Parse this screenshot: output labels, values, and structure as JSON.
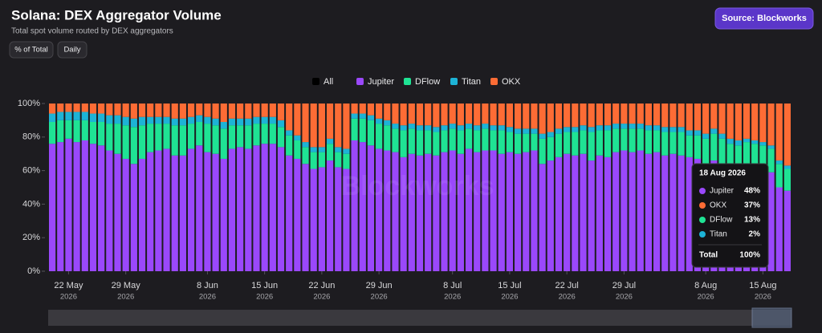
{
  "chart_data": {
    "type": "stacked_bar_percent",
    "title": "Solana: DEX Aggregator Volume",
    "subtitle": "Total spot volume routed by DEX aggregators",
    "buttons": [
      "% of Total",
      "Daily"
    ],
    "source": "Source: Blockworks",
    "watermark": "Blockworks",
    "legend_all": "All",
    "categories": [
      "20 May 2026",
      "21 May 2026",
      "22 May 2026",
      "23 May 2026",
      "24 May 2026",
      "25 May 2026",
      "26 May 2026",
      "27 May 2026",
      "28 May 2026",
      "29 May 2026",
      "30 May 2026",
      "31 May 2026",
      "1 Jun 2026",
      "2 Jun 2026",
      "3 Jun 2026",
      "4 Jun 2026",
      "5 Jun 2026",
      "6 Jun 2026",
      "7 Jun 2026",
      "8 Jun 2026",
      "9 Jun 2026",
      "10 Jun 2026",
      "11 Jun 2026",
      "12 Jun 2026",
      "13 Jun 2026",
      "14 Jun 2026",
      "15 Jun 2026",
      "16 Jun 2026",
      "17 Jun 2026",
      "18 Jun 2026",
      "19 Jun 2026",
      "20 Jun 2026",
      "21 Jun 2026",
      "22 Jun 2026",
      "23 Jun 2026",
      "24 Jun 2026",
      "25 Jun 2026",
      "26 Jun 2026",
      "27 Jun 2026",
      "28 Jun 2026",
      "29 Jun 2026",
      "30 Jun 2026",
      "1 Jul 2026",
      "2 Jul 2026",
      "3 Jul 2026",
      "4 Jul 2026",
      "5 Jul 2026",
      "6 Jul 2026",
      "7 Jul 2026",
      "8 Jul 2026",
      "9 Jul 2026",
      "10 Jul 2026",
      "11 Jul 2026",
      "12 Jul 2026",
      "13 Jul 2026",
      "14 Jul 2026",
      "15 Jul 2026",
      "16 Jul 2026",
      "17 Jul 2026",
      "18 Jul 2026",
      "19 Jul 2026",
      "20 Jul 2026",
      "21 Jul 2026",
      "22 Jul 2026",
      "23 Jul 2026",
      "24 Jul 2026",
      "25 Jul 2026",
      "26 Jul 2026",
      "27 Jul 2026",
      "28 Jul 2026",
      "29 Jul 2026",
      "30 Jul 2026",
      "31 Jul 2026",
      "1 Aug 2026",
      "2 Aug 2026",
      "3 Aug 2026",
      "4 Aug 2026",
      "5 Aug 2026",
      "6 Aug 2026",
      "7 Aug 2026",
      "8 Aug 2026",
      "9 Aug 2026",
      "10 Aug 2026",
      "11 Aug 2026",
      "12 Aug 2026",
      "13 Aug 2026",
      "14 Aug 2026",
      "15 Aug 2026",
      "16 Aug 2026",
      "17 Aug 2026",
      "18 Aug 2026"
    ],
    "series": [
      {
        "name": "Jupiter",
        "color": "#9a48fb",
        "values": [
          76,
          77,
          79,
          77,
          78,
          76,
          75,
          72,
          70,
          67,
          64,
          67,
          71,
          72,
          73,
          69,
          69,
          73,
          75,
          71,
          70,
          67,
          73,
          74,
          73,
          75,
          76,
          76,
          74,
          69,
          67,
          64,
          61,
          62,
          66,
          62,
          61,
          78,
          77,
          75,
          73,
          72,
          71,
          68,
          70,
          69,
          70,
          69,
          71,
          72,
          70,
          73,
          71,
          72,
          72,
          70,
          71,
          70,
          71,
          72,
          64,
          66,
          68,
          70,
          69,
          70,
          66,
          69,
          68,
          71,
          72,
          71,
          72,
          70,
          71,
          69,
          70,
          69,
          68,
          67,
          64,
          66,
          64,
          62,
          62,
          61,
          64,
          61,
          59,
          50,
          48
        ]
      },
      {
        "name": "DFlow",
        "color": "#1fe394",
        "values": [
          13,
          13,
          11,
          13,
          12,
          13,
          14,
          16,
          18,
          20,
          22,
          20,
          17,
          16,
          15,
          18,
          18,
          15,
          14,
          17,
          17,
          18,
          14,
          13,
          14,
          13,
          12,
          12,
          12,
          12,
          11,
          10,
          10,
          9,
          10,
          9,
          9,
          13,
          14,
          15,
          15,
          15,
          14,
          16,
          15,
          15,
          14,
          14,
          13,
          13,
          14,
          12,
          13,
          13,
          12,
          14,
          12,
          12,
          11,
          10,
          15,
          14,
          14,
          13,
          14,
          14,
          17,
          15,
          16,
          14,
          13,
          14,
          13,
          14,
          13,
          14,
          13,
          14,
          13,
          14,
          15,
          16,
          15,
          14,
          13,
          16,
          12,
          14,
          14,
          14,
          13
        ]
      },
      {
        "name": "Titan",
        "color": "#1db3d6",
        "values": [
          5,
          5,
          5,
          5,
          5,
          5,
          5,
          5,
          5,
          5,
          5,
          5,
          4,
          4,
          4,
          4,
          4,
          4,
          4,
          4,
          4,
          4,
          4,
          4,
          4,
          4,
          4,
          4,
          4,
          3,
          3,
          3,
          3,
          3,
          3,
          3,
          3,
          3,
          3,
          3,
          3,
          3,
          3,
          3,
          3,
          3,
          3,
          3,
          3,
          3,
          3,
          3,
          3,
          3,
          3,
          3,
          3,
          3,
          3,
          3,
          3,
          3,
          3,
          3,
          3,
          3,
          3,
          3,
          3,
          3,
          3,
          3,
          3,
          3,
          3,
          3,
          3,
          3,
          3,
          3,
          3,
          3,
          3,
          3,
          3,
          2,
          2,
          2,
          2,
          2,
          2
        ]
      },
      {
        "name": "OKX",
        "color": "#fd6c35",
        "values": [
          6,
          5,
          5,
          5,
          5,
          6,
          6,
          7,
          7,
          8,
          9,
          8,
          8,
          8,
          8,
          9,
          9,
          8,
          7,
          8,
          9,
          11,
          9,
          9,
          9,
          8,
          8,
          8,
          10,
          16,
          19,
          23,
          26,
          26,
          21,
          26,
          27,
          6,
          6,
          7,
          9,
          10,
          12,
          13,
          12,
          13,
          13,
          14,
          13,
          12,
          13,
          12,
          13,
          12,
          13,
          13,
          14,
          15,
          15,
          15,
          18,
          17,
          15,
          14,
          14,
          13,
          14,
          13,
          13,
          12,
          12,
          12,
          12,
          13,
          13,
          14,
          14,
          14,
          16,
          16,
          18,
          15,
          18,
          21,
          22,
          21,
          22,
          23,
          25,
          34,
          37
        ]
      }
    ],
    "ylim": [
      0,
      100
    ],
    "yticks": [
      {
        "value": 0,
        "label": "0%"
      },
      {
        "value": 20,
        "label": "20%"
      },
      {
        "value": 40,
        "label": "40%"
      },
      {
        "value": 60,
        "label": "60%"
      },
      {
        "value": 80,
        "label": "80%"
      },
      {
        "value": 100,
        "label": "100%"
      }
    ],
    "xticks": [
      {
        "value": "22 May 2026",
        "label": "22 May",
        "year": "2026"
      },
      {
        "value": "29 May 2026",
        "label": "29 May",
        "year": "2026"
      },
      {
        "value": "8 Jun 2026",
        "label": "8 Jun",
        "year": "2026"
      },
      {
        "value": "15 Jun 2026",
        "label": "15 Jun",
        "year": "2026"
      },
      {
        "value": "22 Jun 2026",
        "label": "22 Jun",
        "year": "2026"
      },
      {
        "value": "29 Jun 2026",
        "label": "29 Jun",
        "year": "2026"
      },
      {
        "value": "8 Jul 2026",
        "label": "8 Jul",
        "year": "2026"
      },
      {
        "value": "15 Jul 2026",
        "label": "15 Jul",
        "year": "2026"
      },
      {
        "value": "22 Jul 2026",
        "label": "22 Jul",
        "year": "2026"
      },
      {
        "value": "29 Jul 2026",
        "label": "29 Jul",
        "year": "2026"
      },
      {
        "value": "8 Aug 2026",
        "label": "8 Aug",
        "year": "2026"
      },
      {
        "value": "15 Aug 2026",
        "label": "15 Aug",
        "year": "2026"
      }
    ],
    "tooltip": {
      "date": "18 Aug 2026",
      "items": [
        {
          "name": "Jupiter",
          "color": "#9a48fb",
          "value": 48,
          "label": "48%"
        },
        {
          "name": "OKX",
          "color": "#fd6c35",
          "value": 37,
          "label": "37%"
        },
        {
          "name": "DFlow",
          "color": "#1fe394",
          "value": 13,
          "label": "13%"
        },
        {
          "name": "Titan",
          "color": "#1db3d6",
          "value": 2,
          "label": "2%"
        }
      ],
      "total_name": "Total",
      "total_label": "100%"
    }
  }
}
